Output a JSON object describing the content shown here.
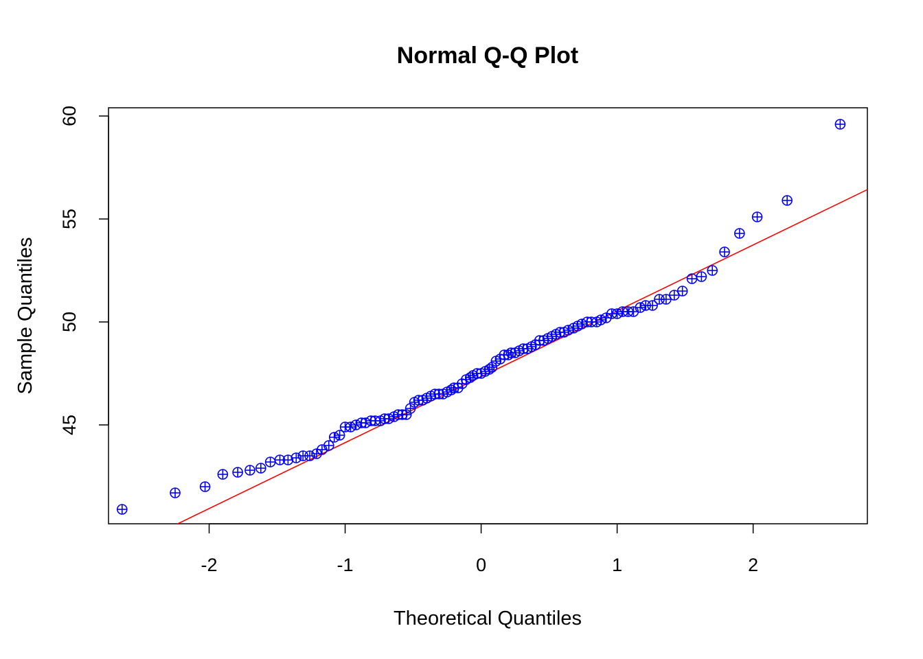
{
  "chart_data": {
    "type": "scatter",
    "title": "Normal Q-Q Plot",
    "xlabel": "Theoretical Quantiles",
    "ylabel": "Sample Quantiles",
    "xlim": [
      -2.74,
      2.84
    ],
    "ylim": [
      40.2,
      60.4
    ],
    "x_ticks": [
      -2,
      -1,
      0,
      1,
      2
    ],
    "x_tick_labels": [
      "-2",
      "-1",
      "0",
      "1",
      "2"
    ],
    "y_ticks": [
      45,
      50,
      55,
      60
    ],
    "y_tick_labels": [
      "45",
      "50",
      "55",
      "60"
    ],
    "grid": false,
    "legend": "none",
    "marker": "circle-plus",
    "colors": {
      "points": "#0000ff",
      "reference_line": "#ff0000",
      "frame": "#000000"
    },
    "reference_line": {
      "intercept": 47.34,
      "slope": 3.2
    },
    "series": [
      {
        "x": [
          -2.64,
          -2.25,
          -2.03,
          -1.9,
          -1.79,
          -1.7,
          -1.62,
          -1.55,
          -1.48,
          -1.42,
          -1.36,
          -1.31,
          -1.26,
          -1.21,
          -1.17,
          -1.12,
          -1.08,
          -1.04,
          -1.0,
          -0.96,
          -0.92,
          -0.88,
          -0.85,
          -0.81,
          -0.78,
          -0.74,
          -0.71,
          -0.68,
          -0.64,
          -0.61,
          -0.58,
          -0.55,
          -0.52,
          -0.49,
          -0.46,
          -0.43,
          -0.4,
          -0.37,
          -0.34,
          -0.31,
          -0.28,
          -0.25,
          -0.22,
          -0.2,
          -0.17,
          -0.14,
          -0.11,
          -0.08,
          -0.06,
          -0.03,
          0.0,
          0.03,
          0.06,
          0.08,
          0.11,
          0.14,
          0.17,
          0.2,
          0.22,
          0.25,
          0.28,
          0.31,
          0.34,
          0.37,
          0.4,
          0.43,
          0.46,
          0.49,
          0.52,
          0.55,
          0.58,
          0.61,
          0.64,
          0.68,
          0.71,
          0.74,
          0.78,
          0.81,
          0.85,
          0.88,
          0.92,
          0.96,
          1.0,
          1.04,
          1.08,
          1.12,
          1.17,
          1.21,
          1.26,
          1.31,
          1.36,
          1.42,
          1.48,
          1.55,
          1.62,
          1.7,
          1.79,
          1.9,
          2.03,
          2.25,
          2.64
        ],
        "y": [
          40.9,
          41.7,
          42.0,
          42.6,
          42.7,
          42.8,
          42.9,
          43.2,
          43.3,
          43.3,
          43.4,
          43.5,
          43.5,
          43.6,
          43.8,
          44.0,
          44.4,
          44.5,
          44.9,
          44.9,
          45.0,
          45.1,
          45.1,
          45.2,
          45.2,
          45.2,
          45.3,
          45.3,
          45.4,
          45.5,
          45.5,
          45.5,
          45.8,
          46.1,
          46.2,
          46.2,
          46.3,
          46.4,
          46.5,
          46.5,
          46.5,
          46.6,
          46.7,
          46.8,
          46.8,
          47.0,
          47.2,
          47.3,
          47.4,
          47.5,
          47.5,
          47.6,
          47.7,
          47.8,
          48.1,
          48.2,
          48.4,
          48.4,
          48.5,
          48.5,
          48.6,
          48.7,
          48.7,
          48.8,
          48.9,
          49.1,
          49.1,
          49.2,
          49.3,
          49.4,
          49.5,
          49.5,
          49.6,
          49.7,
          49.8,
          49.9,
          50.0,
          50.0,
          50.0,
          50.1,
          50.2,
          50.4,
          50.4,
          50.5,
          50.5,
          50.5,
          50.7,
          50.8,
          50.8,
          51.1,
          51.1,
          51.3,
          51.5,
          52.1,
          52.2,
          52.5,
          53.4,
          54.3,
          55.1,
          55.9,
          59.6
        ]
      }
    ]
  }
}
